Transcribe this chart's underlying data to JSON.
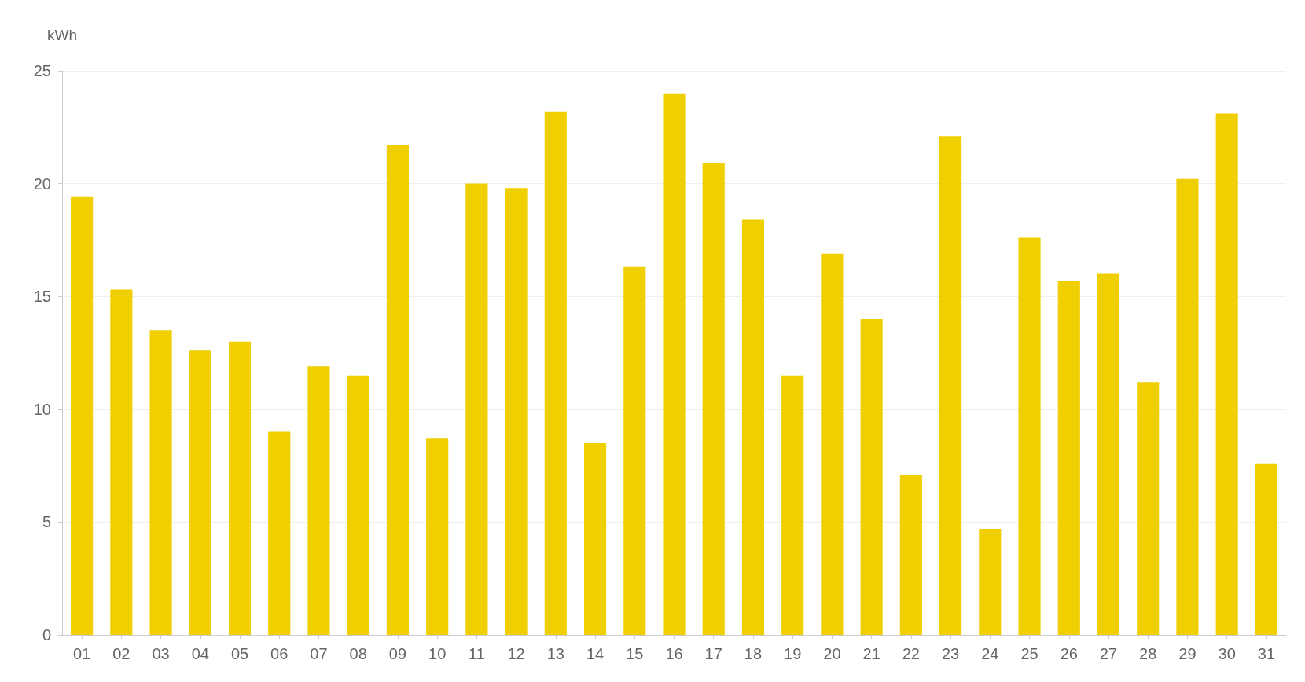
{
  "chart_data": {
    "type": "bar",
    "ylabel": "kWh",
    "categories": [
      "01",
      "02",
      "03",
      "04",
      "05",
      "06",
      "07",
      "08",
      "09",
      "10",
      "11",
      "12",
      "13",
      "14",
      "15",
      "16",
      "17",
      "18",
      "19",
      "20",
      "21",
      "22",
      "23",
      "24",
      "25",
      "26",
      "27",
      "28",
      "29",
      "30",
      "31"
    ],
    "values": [
      19.4,
      15.3,
      13.5,
      12.6,
      13.0,
      9.0,
      11.9,
      11.5,
      21.7,
      8.7,
      20.0,
      19.8,
      23.2,
      8.5,
      16.3,
      24.0,
      20.9,
      18.4,
      11.5,
      16.9,
      14.0,
      7.1,
      22.1,
      4.7,
      17.6,
      15.7,
      16.0,
      11.2,
      20.2,
      23.1,
      7.6
    ],
    "color": "#f0cf00",
    "ylim": [
      0,
      25
    ],
    "yticks": [
      0,
      5,
      10,
      15,
      20,
      25
    ],
    "grid": "y"
  }
}
